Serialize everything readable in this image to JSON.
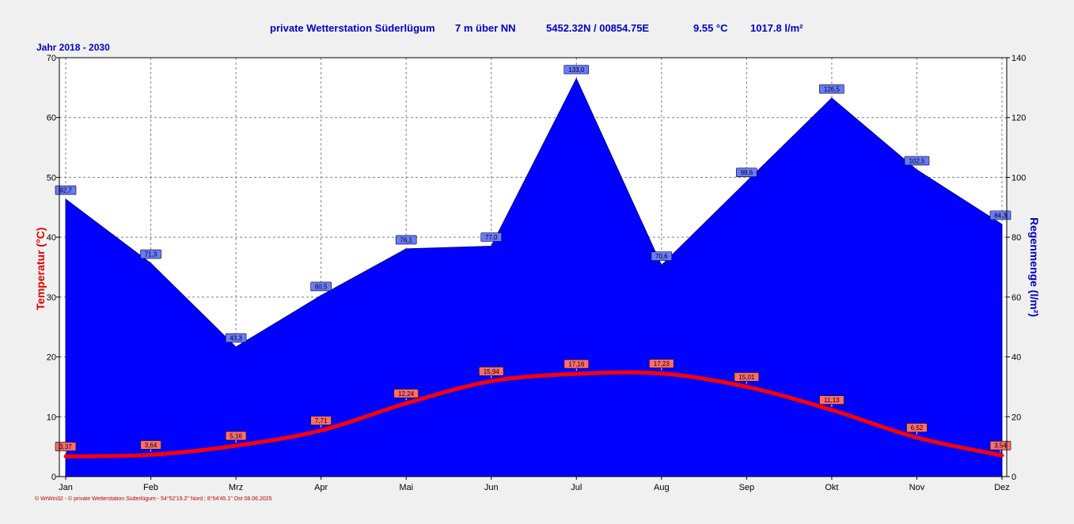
{
  "header": {
    "station": "private Wetterstation Süderlügum",
    "elevation": "7 m über NN",
    "coords": "5452.32N / 00854.75E",
    "mean_temp": "9.55 °C",
    "total_rain": "1017.8 l/m²"
  },
  "year_range": "Jahr  2018 - 2030",
  "footer": "© WrWin32  -  © private Wetterstation Süderlügum  -  54°52'19.2\" Nord ; 8°54'45.1\" Ost   08.06.2025",
  "colors": {
    "rain": "#0000ff",
    "temperature": "#ff0000",
    "text_blue": "#0000c0"
  },
  "chart_data": {
    "type": "area",
    "categories": [
      "Jan",
      "Feb",
      "Mrz",
      "Apr",
      "Mai",
      "Jun",
      "Jul",
      "Aug",
      "Sep",
      "Okt",
      "Nov",
      "Dez"
    ],
    "series": [
      {
        "name": "Regenmenge",
        "type": "area",
        "axis": "right",
        "values": [
          92.7,
          71.3,
          43.3,
          60.5,
          76.1,
          77.0,
          133.0,
          70.6,
          98.6,
          126.5,
          102.5,
          84.3
        ],
        "labels": [
          "92,7",
          "71,3",
          "43,3",
          "60,5",
          "76,1",
          "77,0",
          "133,0",
          "70,6",
          "98,6",
          "126,5",
          "102,5",
          "84,3"
        ]
      },
      {
        "name": "Temperatur",
        "type": "line",
        "axis": "left",
        "values": [
          3.37,
          3.64,
          5.16,
          7.71,
          12.24,
          15.94,
          17.16,
          17.23,
          15.01,
          11.13,
          6.52,
          3.54
        ],
        "labels": [
          "3,37",
          "3,64",
          "5,16",
          "7,71",
          "12,24",
          "15,94",
          "17,16",
          "17,23",
          "15,01",
          "11,13",
          "6,52",
          "3,54"
        ]
      }
    ],
    "ylabel_left": "Temperatur  (°C)",
    "ylabel_right": "Regenmenge  (l/m²)",
    "ylim_left": [
      0,
      70
    ],
    "ylim_right": [
      0,
      140
    ],
    "yticks_left": [
      0,
      10,
      20,
      30,
      40,
      50,
      60,
      70
    ],
    "yticks_right": [
      0,
      20,
      40,
      60,
      80,
      100,
      120,
      140
    ],
    "grid": true
  }
}
